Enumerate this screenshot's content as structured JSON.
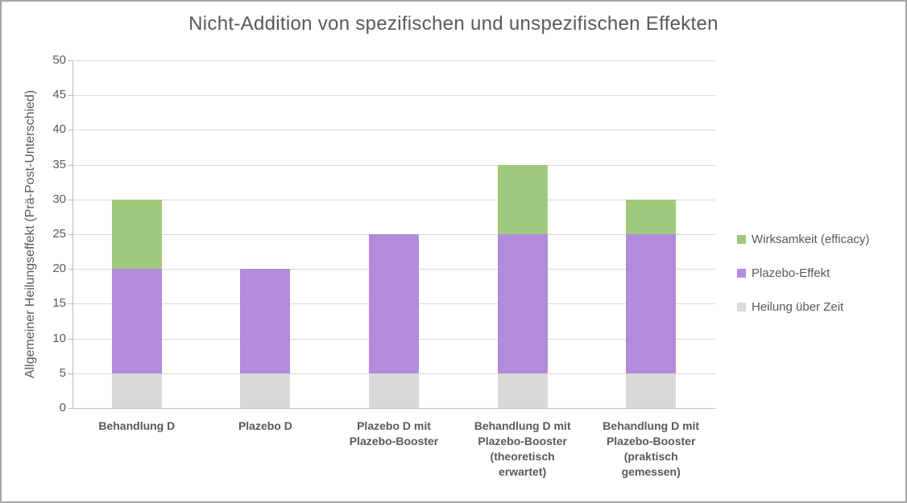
{
  "chart_data": {
    "type": "bar",
    "stacked": true,
    "title": "Nicht-Addition von spezifischen und unspezifischen Effekten",
    "ylabel": "Allgemeiner Heilungseffekt (Prä-Post-Unterschied)",
    "xlabel": "",
    "ylim": [
      0,
      50
    ],
    "ytick_step": 5,
    "yticks": [
      0,
      5,
      10,
      15,
      20,
      25,
      30,
      35,
      40,
      45,
      50
    ],
    "grid": true,
    "legend_position": "right",
    "categories": [
      "Behandlung D",
      "Plazebo D",
      "Plazebo D mit Plazebo-Booster",
      "Behandlung D mit Plazebo-Booster (theoretisch erwartet)",
      "Behandlung D mit Plazebo-Booster (praktisch gemessen)"
    ],
    "category_lines": [
      [
        "Behandlung D"
      ],
      [
        "Plazebo D"
      ],
      [
        "Plazebo D mit",
        "Plazebo-Booster"
      ],
      [
        "Behandlung D mit",
        "Plazebo-Booster",
        "(theoretisch",
        "erwartet)"
      ],
      [
        "Behandlung D mit",
        "Plazebo-Booster",
        "(praktisch",
        "gemessen)"
      ]
    ],
    "series": [
      {
        "name": "Heilung über Zeit",
        "color": "#D9D9D9",
        "values": [
          5,
          5,
          5,
          5,
          5
        ]
      },
      {
        "name": "Plazebo-Effekt",
        "color": "#B28BDA",
        "values": [
          15,
          15,
          20,
          20,
          20
        ]
      },
      {
        "name": "Wirksamkeit (efficacy)",
        "color": "#A0C97E",
        "values": [
          10,
          0,
          0,
          10,
          5
        ]
      }
    ],
    "legend": [
      "Wirksamkeit (efficacy)",
      "Plazebo-Effekt",
      "Heilung über Zeit"
    ]
  },
  "colors": {
    "background": "#FFFFFF",
    "frame_border": "#A6A6A6",
    "title_text": "#595959",
    "axis_text": "#595959",
    "gridline": "#D9D9D9",
    "axis_line": "#BFBFBF"
  }
}
